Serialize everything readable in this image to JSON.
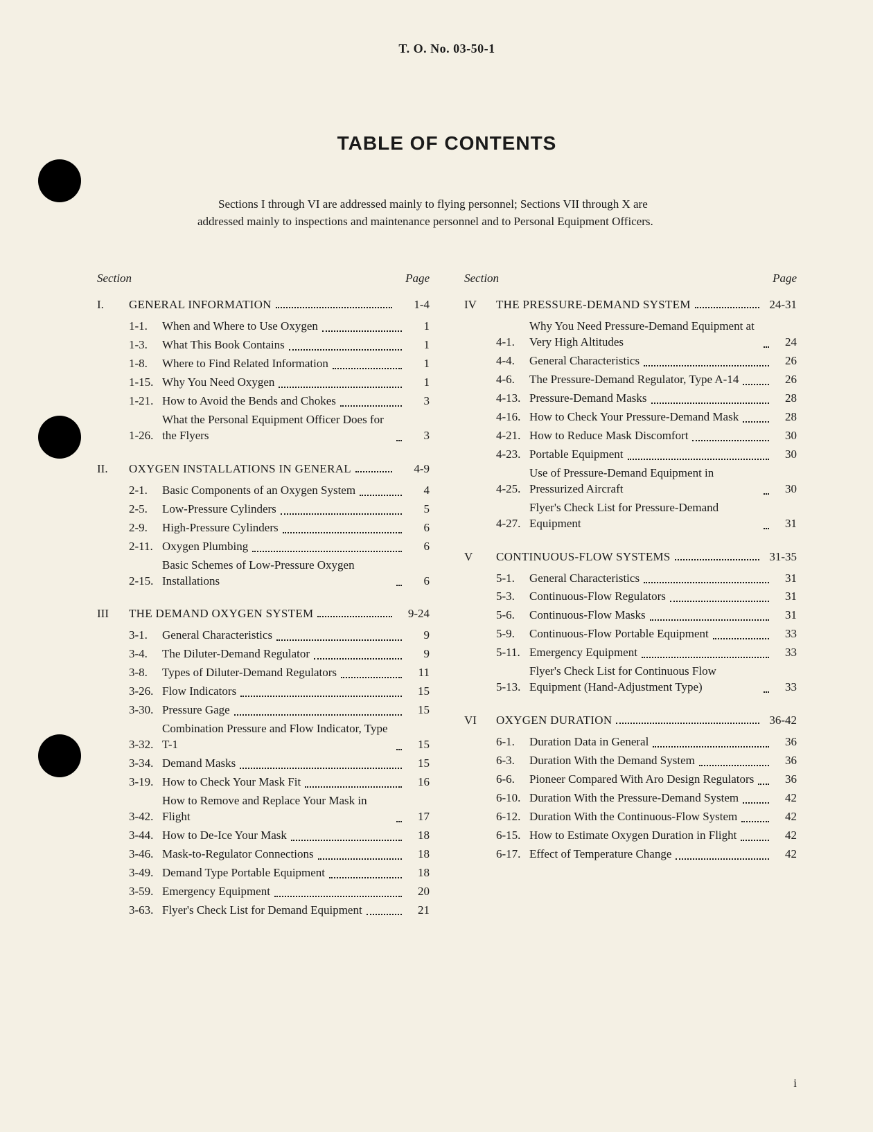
{
  "doc_number": "T. O. No. 03-50-1",
  "title": "TABLE OF CONTENTS",
  "intro": "Sections I through VI are addressed mainly to flying personnel; Sections VII through X are addressed mainly to inspections and maintenance personnel and to Personal Equipment Officers.",
  "col_header_left": "Section",
  "col_header_right": "Page",
  "footer_page": "i",
  "punch_holes": [
    230,
    600,
    1060
  ],
  "columns": [
    {
      "sections": [
        {
          "roman": "I.",
          "title": "GENERAL INFORMATION",
          "page": "1-4",
          "entries": [
            {
              "num": "1-1.",
              "text": "When and Where to Use Oxygen",
              "page": "1"
            },
            {
              "num": "1-3.",
              "text": "What This Book Contains",
              "page": "1"
            },
            {
              "num": "1-8.",
              "text": "Where to Find Related Information",
              "page": "1"
            },
            {
              "num": "1-15.",
              "text": "Why You Need Oxygen",
              "page": "1"
            },
            {
              "num": "1-21.",
              "text": "How to Avoid the Bends and Chokes",
              "page": "3"
            },
            {
              "num": "1-26.",
              "text": "What the Personal Equipment Officer Does for the Flyers",
              "page": "3"
            }
          ]
        },
        {
          "roman": "II.",
          "title": "OXYGEN INSTALLATIONS IN GENERAL",
          "page": "4-9",
          "entries": [
            {
              "num": "2-1.",
              "text": "Basic Components of an Oxygen System",
              "page": "4"
            },
            {
              "num": "2-5.",
              "text": "Low-Pressure Cylinders",
              "page": "5"
            },
            {
              "num": "2-9.",
              "text": "High-Pressure Cylinders",
              "page": "6"
            },
            {
              "num": "2-11.",
              "text": "Oxygen Plumbing",
              "page": "6"
            },
            {
              "num": "2-15.",
              "text": "Basic Schemes of Low-Pressure Oxygen Installations",
              "page": "6"
            }
          ]
        },
        {
          "roman": "III",
          "title": "THE DEMAND OXYGEN SYSTEM",
          "page": "9-24",
          "entries": [
            {
              "num": "3-1.",
              "text": "General Characteristics",
              "page": "9"
            },
            {
              "num": "3-4.",
              "text": "The Diluter-Demand Regulator",
              "page": "9"
            },
            {
              "num": "3-8.",
              "text": "Types of Diluter-Demand Regulators",
              "page": "11"
            },
            {
              "num": "3-26.",
              "text": "Flow Indicators",
              "page": "15"
            },
            {
              "num": "3-30.",
              "text": "Pressure Gage",
              "page": "15"
            },
            {
              "num": "3-32.",
              "text": "Combination Pressure and Flow Indicator, Type T-1",
              "page": "15"
            },
            {
              "num": "3-34.",
              "text": "Demand Masks",
              "page": "15"
            },
            {
              "num": "3-19.",
              "text": "How to Check Your Mask Fit",
              "page": "16"
            },
            {
              "num": "3-42.",
              "text": "How to Remove and Replace Your Mask in Flight",
              "page": "17"
            },
            {
              "num": "3-44.",
              "text": "How to De-Ice Your Mask",
              "page": "18"
            },
            {
              "num": "3-46.",
              "text": "Mask-to-Regulator Connections",
              "page": "18"
            },
            {
              "num": "3-49.",
              "text": "Demand Type Portable Equipment",
              "page": "18"
            },
            {
              "num": "3-59.",
              "text": "Emergency Equipment",
              "page": "20"
            },
            {
              "num": "3-63.",
              "text": "Flyer's Check List for Demand Equipment",
              "page": "21"
            }
          ]
        }
      ]
    },
    {
      "sections": [
        {
          "roman": "IV",
          "title": "THE PRESSURE-DEMAND SYSTEM",
          "page": "24-31",
          "entries": [
            {
              "num": "4-1.",
              "text": "Why You Need Pressure-Demand Equipment at Very High Altitudes",
              "page": "24"
            },
            {
              "num": "4-4.",
              "text": "General Characteristics",
              "page": "26"
            },
            {
              "num": "4-6.",
              "text": "The Pressure-Demand Regulator, Type A-14",
              "page": "26"
            },
            {
              "num": "4-13.",
              "text": "Pressure-Demand Masks",
              "page": "28"
            },
            {
              "num": "4-16.",
              "text": "How to Check Your Pressure-Demand Mask",
              "page": "28"
            },
            {
              "num": "4-21.",
              "text": "How to Reduce Mask Discomfort",
              "page": "30"
            },
            {
              "num": "4-23.",
              "text": "Portable Equipment",
              "page": "30"
            },
            {
              "num": "4-25.",
              "text": "Use of Pressure-Demand Equipment in Pressurized Aircraft",
              "page": "30"
            },
            {
              "num": "4-27.",
              "text": "Flyer's Check List for Pressure-Demand Equipment",
              "page": "31"
            }
          ]
        },
        {
          "roman": "V",
          "title": "CONTINUOUS-FLOW SYSTEMS",
          "page": "31-35",
          "entries": [
            {
              "num": "5-1.",
              "text": "General Characteristics",
              "page": "31"
            },
            {
              "num": "5-3.",
              "text": "Continuous-Flow Regulators",
              "page": "31"
            },
            {
              "num": "5-6.",
              "text": "Continuous-Flow Masks",
              "page": "31"
            },
            {
              "num": "5-9.",
              "text": "Continuous-Flow Portable Equipment",
              "page": "33"
            },
            {
              "num": "5-11.",
              "text": "Emergency Equipment",
              "page": "33"
            },
            {
              "num": "5-13.",
              "text": "Flyer's Check List for Continuous Flow Equipment (Hand-Adjustment Type)",
              "page": "33"
            }
          ]
        },
        {
          "roman": "VI",
          "title": "OXYGEN DURATION",
          "page": "36-42",
          "entries": [
            {
              "num": "6-1.",
              "text": "Duration Data in General",
              "page": "36"
            },
            {
              "num": "6-3.",
              "text": "Duration With the Demand System",
              "page": "36"
            },
            {
              "num": "6-6.",
              "text": "Pioneer Compared With Aro Design Regulators",
              "page": "36"
            },
            {
              "num": "6-10.",
              "text": "Duration With the Pressure-Demand System",
              "page": "42"
            },
            {
              "num": "6-12.",
              "text": "Duration With the Continuous-Flow System",
              "page": "42"
            },
            {
              "num": "6-15.",
              "text": "How to Estimate Oxygen Duration in Flight",
              "page": "42"
            },
            {
              "num": "6-17.",
              "text": "Effect of Temperature Change",
              "page": "42"
            }
          ]
        }
      ]
    }
  ]
}
